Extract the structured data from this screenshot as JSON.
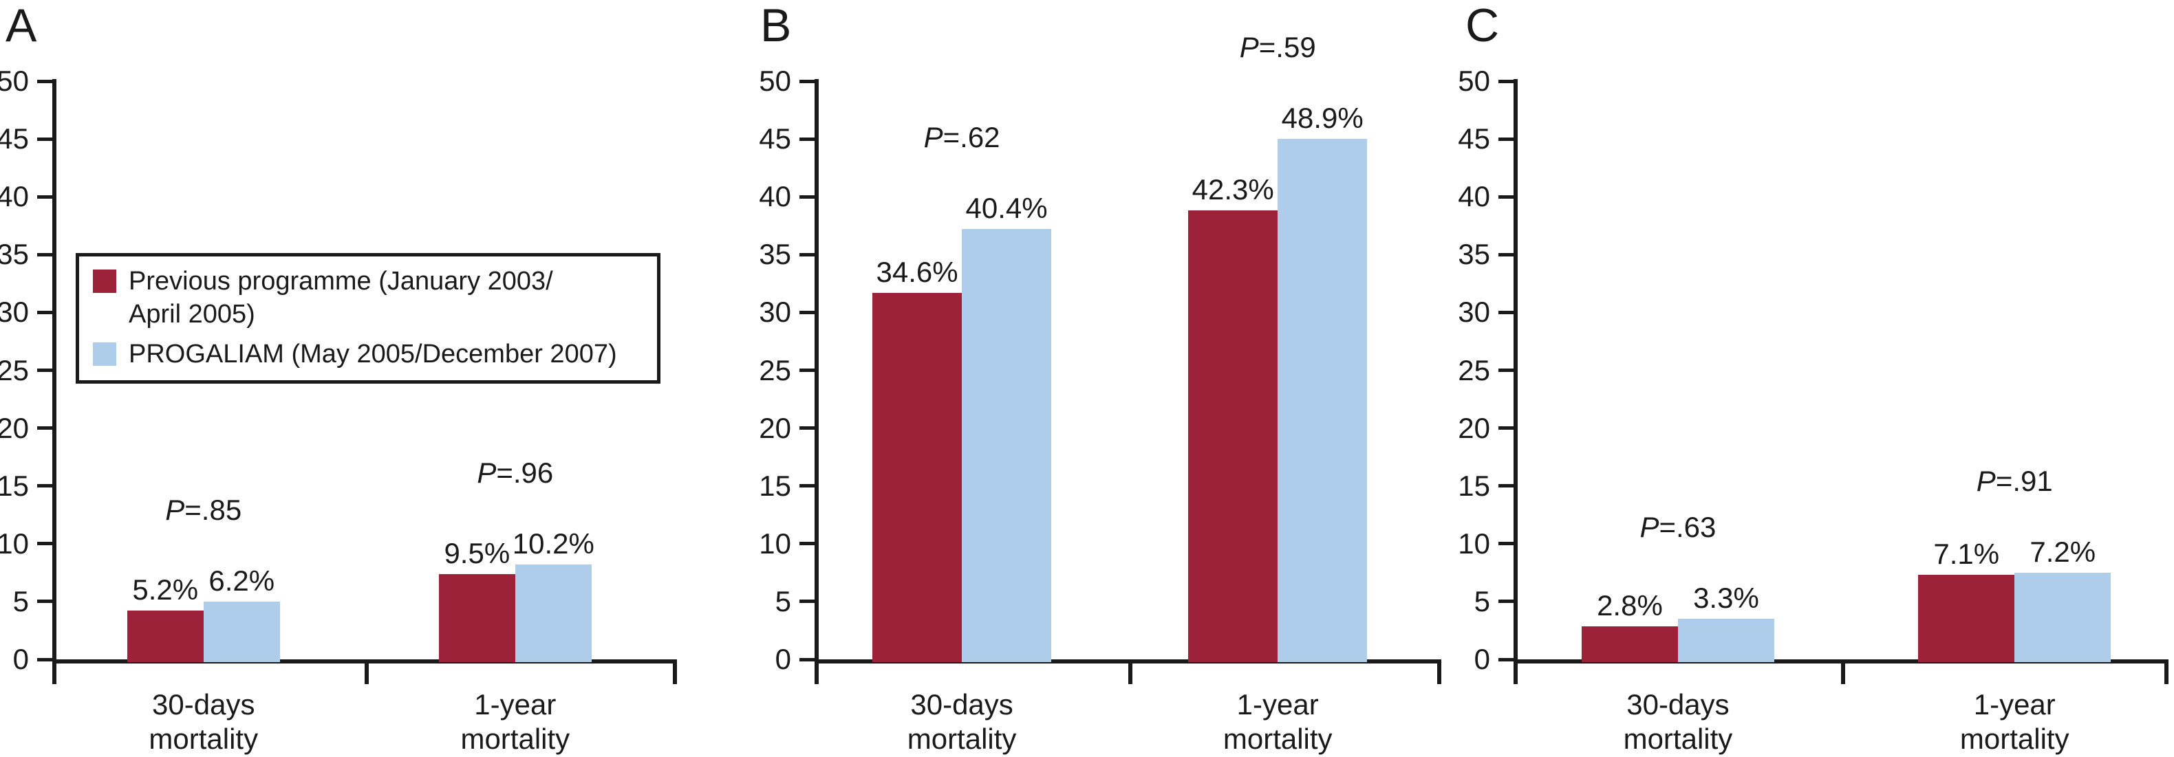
{
  "figure_title": "",
  "colors": {
    "previous_programme": "#9b2239",
    "progaliam": "#aecdea",
    "axis_and_text": "#1a1a1a",
    "background": "#ffffff"
  },
  "legend": {
    "items": [
      {
        "name": "legend-previous-programme",
        "color": "#9b2239",
        "lines": [
          "Previous programme (January 2003/",
          "April 2005)"
        ]
      },
      {
        "name": "legend-progaliam",
        "color": "#aecdea",
        "lines": [
          "PROGALIAM (May 2005/December 2007)"
        ]
      }
    ]
  },
  "chart_data": [
    {
      "type": "bar",
      "panel_label": "A",
      "categories": [
        "30-days mortality",
        "1-year mortality"
      ],
      "category_lines": [
        [
          "30-days",
          "mortality"
        ],
        [
          "1-year",
          "mortality"
        ]
      ],
      "series": [
        {
          "name": "Previous programme (January 2003/April 2005)",
          "values": [
            5.2,
            9.5
          ]
        },
        {
          "name": "PROGALIAM (May 2005/December 2007)",
          "values": [
            6.2,
            10.2
          ]
        }
      ],
      "value_labels": [
        [
          "5.2%",
          "6.2%"
        ],
        [
          "9.5%",
          "10.2%"
        ]
      ],
      "p_annotations": [
        "P=.85",
        "P=.96"
      ],
      "bar_heights_as_drawn": [
        [
          4.2,
          5.0
        ],
        [
          7.35,
          8.2
        ]
      ],
      "ylim": [
        0,
        50
      ],
      "yticks": [
        0,
        5,
        10,
        15,
        20,
        25,
        30,
        35,
        40,
        45,
        50
      ],
      "grid": false,
      "legend_position": "inside-upper-left"
    },
    {
      "type": "bar",
      "panel_label": "B",
      "categories": [
        "30-days mortality",
        "1-year mortality"
      ],
      "category_lines": [
        [
          "30-days",
          "mortality"
        ],
        [
          "1-year",
          "mortality"
        ]
      ],
      "series": [
        {
          "name": "Previous programme (January 2003/April 2005)",
          "values": [
            34.6,
            42.3
          ]
        },
        {
          "name": "PROGALIAM (May 2005/December 2007)",
          "values": [
            40.4,
            48.9
          ]
        }
      ],
      "value_labels": [
        [
          "34.6%",
          "40.4%"
        ],
        [
          "42.3%",
          "48.9%"
        ]
      ],
      "p_annotations": [
        "P=.62",
        "P=.59"
      ],
      "bar_heights_as_drawn": [
        [
          31.7,
          37.2
        ],
        [
          38.8,
          45.0
        ]
      ],
      "ylim": [
        0,
        50
      ],
      "yticks": [
        0,
        5,
        10,
        15,
        20,
        25,
        30,
        35,
        40,
        45,
        50
      ],
      "grid": false,
      "legend_position": "none"
    },
    {
      "type": "bar",
      "panel_label": "C",
      "categories": [
        "30-days mortality",
        "1-year mortality"
      ],
      "category_lines": [
        [
          "30-days",
          "mortality"
        ],
        [
          "1-year",
          "mortality"
        ]
      ],
      "series": [
        {
          "name": "Previous programme (January 2003/April 2005)",
          "values": [
            2.8,
            7.1
          ]
        },
        {
          "name": "PROGALIAM (May 2005/December 2007)",
          "values": [
            3.3,
            7.2
          ]
        }
      ],
      "value_labels": [
        [
          "2.8%",
          "3.3%"
        ],
        [
          "7.1%",
          "7.2%"
        ]
      ],
      "p_annotations": [
        "P=.63",
        "P=.91"
      ],
      "bar_heights_as_drawn": [
        [
          2.85,
          3.5
        ],
        [
          7.3,
          7.5
        ]
      ],
      "ylim": [
        0,
        50
      ],
      "yticks": [
        0,
        5,
        10,
        15,
        20,
        25,
        30,
        35,
        40,
        45,
        50
      ],
      "grid": false,
      "legend_position": "none"
    }
  ]
}
